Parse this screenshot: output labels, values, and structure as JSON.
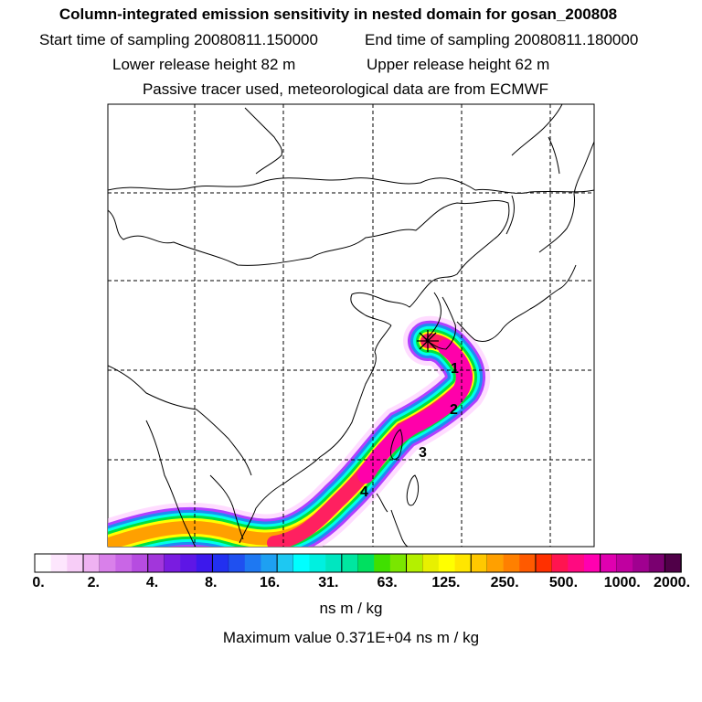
{
  "header": {
    "title": "Column-integrated emission sensitivity in nested domain for gosan_200808",
    "start_time": "Start time of sampling 20080811.150000",
    "end_time": "End time of sampling 20080811.180000",
    "lower_release": "Lower release height   82 m",
    "upper_release": "Upper release height   62 m",
    "tracer_note": "Passive tracer used, meteorological data are from ECMWF"
  },
  "map": {
    "receptor_marker": "receptor-star",
    "day_labels": [
      "1",
      "2",
      "3",
      "4"
    ],
    "plume_colors": [
      "#ff00aa",
      "#ff1040",
      "#ffb000",
      "#ffff00",
      "#00e000",
      "#00ffe0",
      "#0090ff",
      "#a000ff",
      "#ffa0ff"
    ]
  },
  "colorbar": {
    "tick_labels": [
      "0.",
      "2.",
      "4.",
      "8.",
      "16.",
      "31.",
      "63.",
      "125.",
      "250.",
      "500.",
      "1000.",
      "2000."
    ],
    "colors": [
      "#ffffff",
      "#fde6fd",
      "#f7cdf7",
      "#efb2f2",
      "#d980ea",
      "#c966e6",
      "#b64ce0",
      "#a236db",
      "#7a1ce0",
      "#5e16e6",
      "#3c18ec",
      "#2230f0",
      "#1f50f0",
      "#1e78f2",
      "#1ea0f2",
      "#1ec8f2",
      "#00ffff",
      "#00f0e0",
      "#00e6c0",
      "#00e6a0",
      "#00e060",
      "#40e000",
      "#7ae600",
      "#b4f000",
      "#e8f000",
      "#ffff00",
      "#ffe600",
      "#ffc800",
      "#ffa000",
      "#ff8000",
      "#ff5a00",
      "#ff3000",
      "#ff1450",
      "#ff0a80",
      "#ff00b0",
      "#e000b0",
      "#c000a0",
      "#a00090",
      "#7a0070",
      "#500048"
    ],
    "units": "ns m / kg"
  },
  "footer": {
    "maximum": "Maximum value  0.371E+04 ns m / kg"
  }
}
